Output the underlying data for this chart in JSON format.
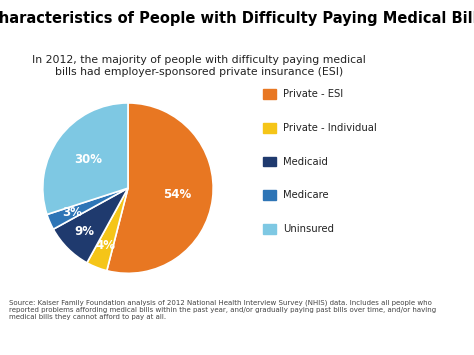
{
  "title": "Characteristics of People with Difficulty Paying Medical Bills",
  "subtitle": "In 2012, the majority of people with difficulty paying medical\nbills had employer-sponsored private insurance (ESI)",
  "slices": [
    54,
    4,
    9,
    3,
    30
  ],
  "labels": [
    "54%",
    "4%",
    "9%",
    "3%",
    "30%"
  ],
  "colors": [
    "#E87722",
    "#F5C518",
    "#1F3A6E",
    "#2E75B6",
    "#7EC8E3"
  ],
  "legend_labels": [
    "Private - ESI",
    "Private - Individual",
    "Medicaid",
    "Medicare",
    "Uninsured"
  ],
  "source_text": "Source: Kaiser Family Foundation analysis of 2012 National Health Interview Survey (NHIS) data. Includes all people who\nreported problems affording medical bills within the past year, and/or gradually paying past bills over time, and/or having\nmedical bills they cannot afford to pay at all.",
  "background_color": "#FFFFFF"
}
